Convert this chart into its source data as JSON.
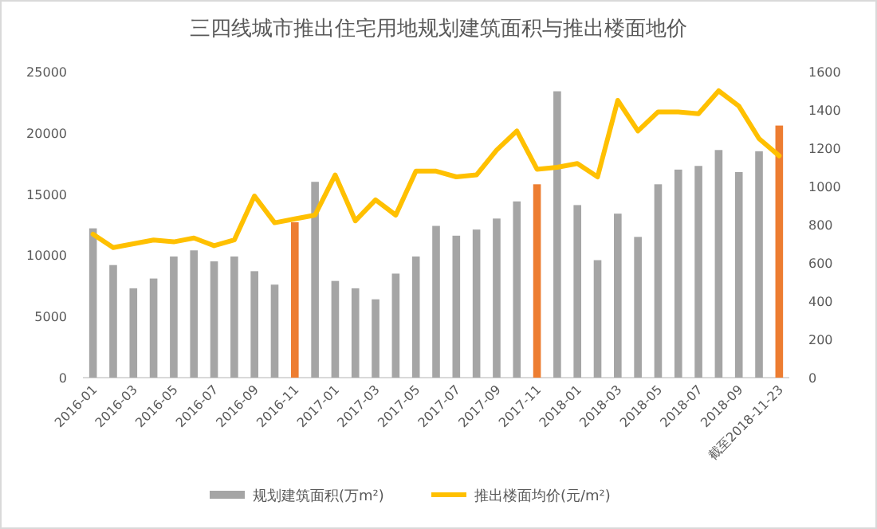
{
  "chart_data": {
    "type": "bar",
    "title": "三四线城市推出住宅用地规划建筑面积与推出楼面地价",
    "categories": [
      "2016-01",
      null,
      "2016-03",
      null,
      "2016-05",
      null,
      "2016-07",
      null,
      "2016-09",
      null,
      "2016-11",
      null,
      "2017-01",
      null,
      "2017-03",
      null,
      "2017-05",
      null,
      "2017-07",
      null,
      "2017-09",
      null,
      "2017-11",
      null,
      "2018-01",
      null,
      "2018-03",
      null,
      "2018-05",
      null,
      "2018-07",
      null,
      "2018-09",
      null,
      "截至2018-11-23"
    ],
    "series": [
      {
        "name": "规划建筑面积(万m²)",
        "color": "#a5a5a5",
        "colors": [
          "#a5a5a5",
          "#a5a5a5",
          "#a5a5a5",
          "#a5a5a5",
          "#a5a5a5",
          "#a5a5a5",
          "#a5a5a5",
          "#a5a5a5",
          "#a5a5a5",
          "#a5a5a5",
          "#ed7d31",
          "#a5a5a5",
          "#a5a5a5",
          "#a5a5a5",
          "#a5a5a5",
          "#a5a5a5",
          "#a5a5a5",
          "#a5a5a5",
          "#a5a5a5",
          "#a5a5a5",
          "#a5a5a5",
          "#a5a5a5",
          "#ed7d31",
          "#a5a5a5",
          "#a5a5a5",
          "#a5a5a5",
          "#a5a5a5",
          "#a5a5a5",
          "#a5a5a5",
          "#a5a5a5",
          "#a5a5a5",
          "#a5a5a5",
          "#a5a5a5",
          "#a5a5a5",
          "#ed7d31"
        ],
        "values": [
          12200,
          9200,
          7300,
          8100,
          9900,
          10400,
          9500,
          9900,
          8700,
          7600,
          12700,
          16000,
          7900,
          7300,
          6400,
          8500,
          9900,
          12400,
          11600,
          12100,
          13000,
          14400,
          15800,
          23400,
          14100,
          9600,
          13400,
          11500,
          15800,
          17000,
          17300,
          18600,
          16800,
          18500,
          20600
        ]
      },
      {
        "name": "推出楼面均价(元/m²)",
        "type": "line",
        "axis": "y2",
        "color": "#ffc000",
        "values": [
          750,
          680,
          700,
          720,
          710,
          730,
          690,
          720,
          950,
          810,
          830,
          850,
          1060,
          820,
          930,
          850,
          1080,
          1080,
          1050,
          1060,
          1190,
          1290,
          1090,
          1100,
          1120,
          1050,
          1450,
          1290,
          1390,
          1390,
          1380,
          1500,
          1420,
          1250,
          1160
        ]
      }
    ],
    "ylim": [
      0,
      25000
    ],
    "yticks": [
      0,
      5000,
      10000,
      15000,
      20000,
      25000
    ],
    "y2lim": [
      0,
      1600
    ],
    "y2ticks": [
      0,
      200,
      400,
      600,
      800,
      1000,
      1200,
      1400,
      1600
    ],
    "legend": "bottom",
    "grid": false
  }
}
